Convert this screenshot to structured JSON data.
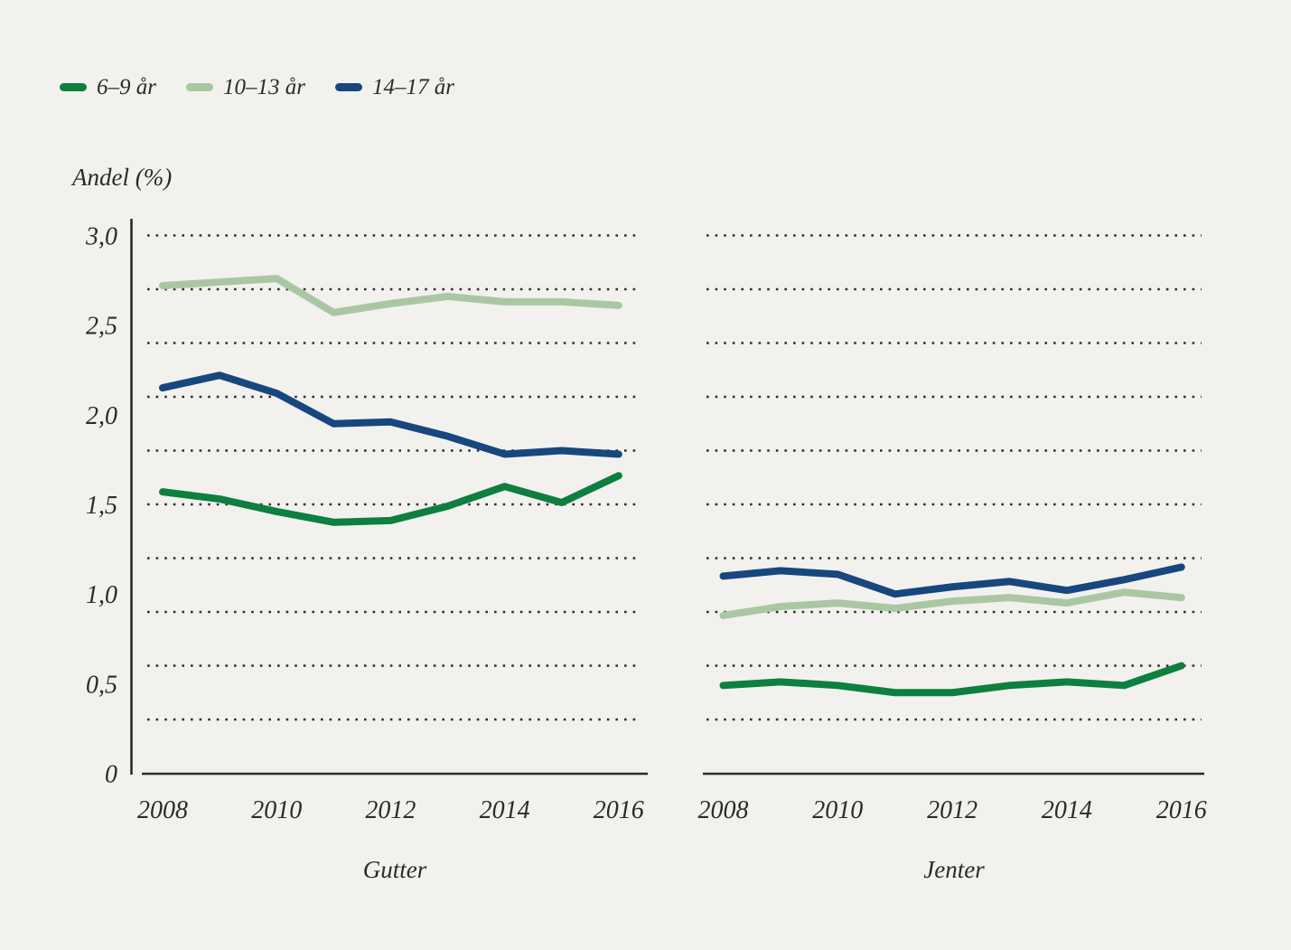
{
  "figure": {
    "background_color": "#f2f1ee",
    "text_color": "#2b2b29",
    "gridline_color": "#2f2f2d",
    "axis_color": "#2b2b29"
  },
  "legend": {
    "items": [
      {
        "label": "6–9 år",
        "color": "#0d7f3f"
      },
      {
        "label": "10–13 år",
        "color": "#a9c7a3"
      },
      {
        "label": "14–17 år",
        "color": "#17477e"
      }
    ]
  },
  "chart_data": {
    "type": "line",
    "title": "",
    "ylabel": "Andel (%)",
    "xlabel": "",
    "x": [
      2008,
      2009,
      2010,
      2011,
      2012,
      2013,
      2014,
      2015,
      2016
    ],
    "x_tick_labels": [
      "2008",
      "2010",
      "2012",
      "2014",
      "2016"
    ],
    "y_tick_labels": [
      "3,0",
      "2,5",
      "2,0",
      "1,5",
      "1,0",
      "0,5",
      "0"
    ],
    "y_tick_values": [
      3.0,
      2.5,
      2.0,
      1.5,
      1.0,
      0.5,
      0
    ],
    "ylim": [
      0,
      3.0
    ],
    "gridlines": {
      "style": "dotted",
      "values": [
        0.3,
        0.6,
        0.9,
        1.2,
        1.5,
        1.8,
        2.1,
        2.4,
        2.7,
        3.0
      ]
    },
    "legend_position": "top-left",
    "panels": [
      {
        "title": "Gutter",
        "series": [
          {
            "name": "6–9 år",
            "color": "#0d7f3f",
            "values": [
              1.57,
              1.53,
              1.46,
              1.4,
              1.41,
              1.49,
              1.6,
              1.51,
              1.66
            ]
          },
          {
            "name": "10–13 år",
            "color": "#a9c7a3",
            "values": [
              2.72,
              2.74,
              2.76,
              2.57,
              2.62,
              2.66,
              2.63,
              2.63,
              2.61
            ]
          },
          {
            "name": "14–17 år",
            "color": "#17477e",
            "values": [
              2.15,
              2.22,
              2.12,
              1.95,
              1.96,
              1.88,
              1.78,
              1.8,
              1.78
            ]
          }
        ]
      },
      {
        "title": "Jenter",
        "series": [
          {
            "name": "6–9 år",
            "color": "#0d7f3f",
            "values": [
              0.49,
              0.51,
              0.49,
              0.45,
              0.45,
              0.49,
              0.51,
              0.49,
              0.6
            ]
          },
          {
            "name": "10–13 år",
            "color": "#a9c7a3",
            "values": [
              0.88,
              0.93,
              0.95,
              0.92,
              0.96,
              0.98,
              0.95,
              1.01,
              0.98
            ]
          },
          {
            "name": "14–17 år",
            "color": "#17477e",
            "values": [
              1.1,
              1.13,
              1.11,
              1.0,
              1.04,
              1.07,
              1.02,
              1.08,
              1.15
            ]
          }
        ]
      }
    ]
  }
}
